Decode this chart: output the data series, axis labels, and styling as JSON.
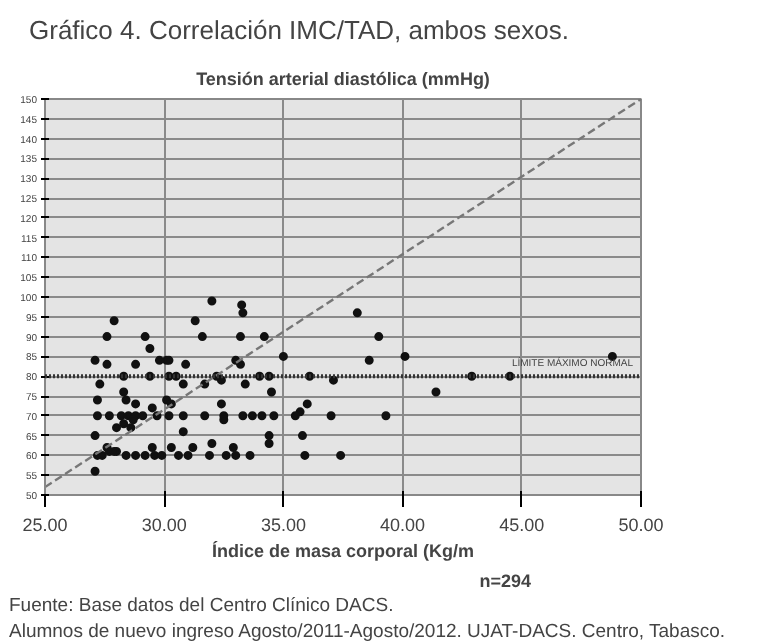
{
  "chart_data": {
    "type": "scatter",
    "title": "Gráfico 4. Correlación IMC/TAD, ambos sexos.",
    "ylabel": "Tensión arterial diastólica (mmHg)",
    "xlabel": "Índice de masa corporal (Kg/m",
    "annotations": [
      "n=294",
      "Fuente: Base datos del Centro Clínico DACS.",
      "Alumnos de nuevo ingreso Agosto/2011-Agosto/2012. UJAT-DACS. Centro, Tabasco."
    ],
    "xlim": [
      25,
      50
    ],
    "xticks": [
      {
        "value": 25,
        "label": "25.00"
      },
      {
        "value": 30,
        "label": "30.00"
      },
      {
        "value": 35,
        "label": "35.00"
      },
      {
        "value": 40,
        "label": "40.00"
      },
      {
        "value": 45,
        "label": "45.00"
      },
      {
        "value": 50,
        "label": "50.00"
      }
    ],
    "ylim": [
      50,
      150
    ],
    "yticks": [
      50,
      55,
      60,
      65,
      70,
      75,
      80,
      85,
      90,
      95,
      100,
      105,
      110,
      115,
      120,
      125,
      130,
      135,
      140,
      145,
      150
    ],
    "grid": true,
    "marker": "circle",
    "ref_lines": [
      {
        "axis": "y",
        "value": 80,
        "label": "LÍMITE MÁXIMO NORMAL",
        "color": "#333333",
        "line_style": "dotted"
      }
    ],
    "series": [
      {
        "color": "#111111",
        "x": [
          32.0,
          33.25,
          33.3,
          27.9,
          31.3,
          38.1,
          27.6,
          29.2,
          31.6,
          33.2,
          34.2,
          39.0,
          29.4,
          30.1,
          35.0,
          40.1,
          38.6,
          27.1,
          27.6,
          28.8,
          29.8,
          30.2,
          30.9,
          33.0,
          33.2,
          28.3,
          29.4,
          30.2,
          30.5,
          32.2,
          34.0,
          34.4,
          36.1,
          37.1,
          31.7,
          27.3,
          28.3,
          30.8,
          32.4,
          33.4,
          34.5,
          30.1,
          28.4,
          27.2,
          28.8,
          29.5,
          30.3,
          32.4,
          36.0,
          35.7,
          27.2,
          27.7,
          28.2,
          28.5,
          28.8,
          29.1,
          29.7,
          30.2,
          30.8,
          31.7,
          32.5,
          33.3,
          33.7,
          34.1,
          34.6,
          35.5,
          37.0,
          39.3,
          28.3,
          28.0,
          28.6,
          30.8,
          32.5,
          34.4,
          35.8,
          27.1,
          27.6,
          28.0,
          29.5,
          30.3,
          31.2,
          32.0,
          32.9,
          34.4,
          27.2,
          27.4,
          27.7,
          27.9,
          28.4,
          28.8,
          29.2,
          29.6,
          29.9,
          30.6,
          31.0,
          31.9,
          32.6,
          33.0,
          33.6,
          35.9,
          37.4,
          27.1,
          28.7,
          48.8,
          41.4,
          42.9,
          44.5
        ],
        "values": [
          99,
          98,
          96,
          94,
          94,
          96,
          90,
          90,
          90,
          90,
          90,
          90,
          87,
          84,
          85,
          85,
          84,
          84,
          83,
          83,
          84,
          84,
          83,
          84,
          83,
          80,
          80,
          80,
          80,
          80,
          80,
          80,
          80,
          79,
          78,
          78,
          76,
          78,
          79,
          78,
          76,
          74,
          74,
          74,
          73,
          72,
          73,
          73,
          73,
          71,
          70,
          70,
          70,
          70,
          70,
          70,
          70,
          70,
          70,
          70,
          70,
          70,
          70,
          70,
          70,
          70,
          70,
          70,
          68,
          67,
          67,
          66,
          69,
          65,
          65,
          65,
          62,
          61,
          62,
          62,
          62,
          63,
          62,
          63,
          60,
          60,
          61,
          61,
          60,
          60,
          60,
          60,
          60,
          60,
          60,
          60,
          60,
          60,
          60,
          60,
          60,
          56,
          69,
          85,
          76,
          80,
          80
        ]
      },
      {
        "type": "line",
        "color": "#777777",
        "line_style": "dashed",
        "marker": "none",
        "x": [
          25,
          50
        ],
        "values": [
          52,
          150
        ]
      }
    ]
  }
}
